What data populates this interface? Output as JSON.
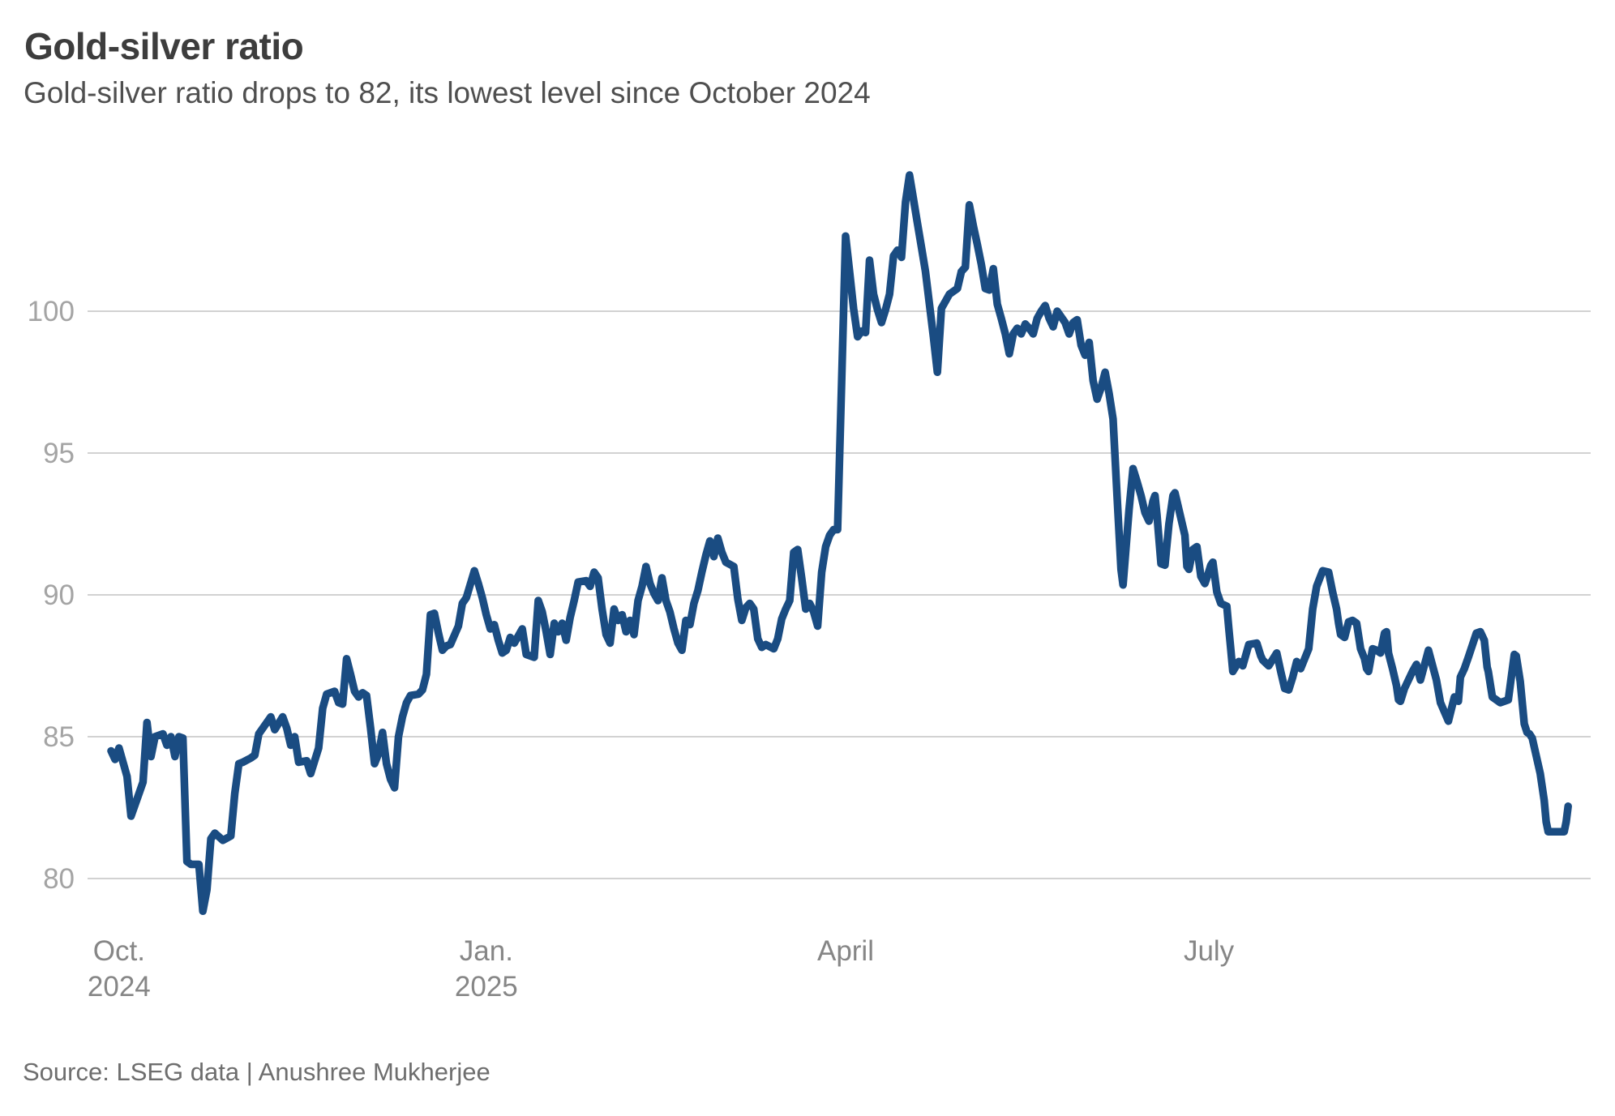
{
  "header": {
    "title": "Gold-silver ratio",
    "subtitle": "Gold-silver ratio drops to 82, its lowest level since October 2024"
  },
  "footer": {
    "source": "Source: LSEG data | Anushree Mukherjee"
  },
  "chart_data": {
    "type": "line",
    "title": "Gold-silver ratio",
    "series_name": "Gold-silver ratio",
    "line_color": "#1a4c82",
    "grid": true,
    "legend": false,
    "y_axis": {
      "ticks": [
        80,
        85,
        90,
        95,
        100
      ],
      "visible_min": 78.8,
      "visible_max": 104.8
    },
    "x_axis": {
      "unit": "days, daily series from late Sep 2024 to late Sep 2025",
      "t_end": 371,
      "ticks": [
        {
          "t": 2,
          "label": [
            "Oct.",
            "2024"
          ]
        },
        {
          "t": 94,
          "label": [
            "Jan.",
            "2025"
          ]
        },
        {
          "t": 184,
          "label": [
            "April"
          ]
        },
        {
          "t": 275,
          "label": [
            "July"
          ]
        }
      ]
    },
    "key_values": {
      "start": 84.5,
      "oct_2024_low": 78.9,
      "april_2025_peak": 104.8,
      "final_low": 81.7,
      "last": 82.5
    },
    "points": [
      [
        0,
        84.5
      ],
      [
        1,
        84.2
      ],
      [
        2,
        84.6
      ],
      [
        4,
        83.6
      ],
      [
        5,
        82.2
      ],
      [
        7,
        83
      ],
      [
        8,
        83.4
      ],
      [
        9,
        85.5
      ],
      [
        10,
        84.3
      ],
      [
        11,
        85
      ],
      [
        13,
        85.1
      ],
      [
        14,
        84.7
      ],
      [
        15,
        85
      ],
      [
        16,
        84.3
      ],
      [
        17,
        85
      ],
      [
        18,
        84.95
      ],
      [
        19,
        80.6
      ],
      [
        20,
        80.5
      ],
      [
        22,
        80.5
      ],
      [
        23,
        78.85
      ],
      [
        24,
        79.6
      ],
      [
        25,
        81.4
      ],
      [
        26,
        81.6
      ],
      [
        28,
        81.35
      ],
      [
        30,
        81.5
      ],
      [
        31,
        83
      ],
      [
        32,
        84.05
      ],
      [
        33,
        84.1
      ],
      [
        35,
        84.25
      ],
      [
        36,
        84.35
      ],
      [
        37,
        85.1
      ],
      [
        40,
        85.7
      ],
      [
        41,
        85.25
      ],
      [
        43,
        85.7
      ],
      [
        44,
        85.3
      ],
      [
        45,
        84.7
      ],
      [
        46,
        85
      ],
      [
        47,
        84.1
      ],
      [
        49,
        84.15
      ],
      [
        50,
        83.7
      ],
      [
        52,
        84.6
      ],
      [
        53,
        86
      ],
      [
        54,
        86.5
      ],
      [
        56,
        86.6
      ],
      [
        57,
        86.2
      ],
      [
        58,
        86.15
      ],
      [
        59,
        87.75
      ],
      [
        60,
        87.2
      ],
      [
        61,
        86.6
      ],
      [
        62,
        86.4
      ],
      [
        63,
        86.55
      ],
      [
        64,
        86.45
      ],
      [
        65,
        85.3
      ],
      [
        66,
        84.05
      ],
      [
        67,
        84.4
      ],
      [
        68,
        85.15
      ],
      [
        69,
        84.05
      ],
      [
        70,
        83.5
      ],
      [
        71,
        83.2
      ],
      [
        72,
        85
      ],
      [
        73,
        85.7
      ],
      [
        74,
        86.2
      ],
      [
        75,
        86.45
      ],
      [
        77,
        86.5
      ],
      [
        78,
        86.65
      ],
      [
        79,
        87.2
      ],
      [
        80,
        89.3
      ],
      [
        81,
        89.35
      ],
      [
        82,
        88.65
      ],
      [
        83,
        88.05
      ],
      [
        84,
        88.2
      ],
      [
        85,
        88.25
      ],
      [
        87,
        88.9
      ],
      [
        88,
        89.7
      ],
      [
        89,
        89.9
      ],
      [
        91,
        90.85
      ],
      [
        92,
        90.4
      ],
      [
        93,
        89.9
      ],
      [
        94,
        89.3
      ],
      [
        95,
        88.8
      ],
      [
        96,
        88.95
      ],
      [
        97,
        88.4
      ],
      [
        98,
        87.95
      ],
      [
        99,
        88.05
      ],
      [
        100,
        88.5
      ],
      [
        101,
        88.3
      ],
      [
        103,
        88.8
      ],
      [
        104,
        87.9
      ],
      [
        106,
        87.8
      ],
      [
        107,
        89.8
      ],
      [
        108,
        89.4
      ],
      [
        109,
        88.7
      ],
      [
        110,
        87.9
      ],
      [
        111,
        89
      ],
      [
        112,
        88.7
      ],
      [
        113,
        89
      ],
      [
        114,
        88.4
      ],
      [
        115,
        89.2
      ],
      [
        116,
        89.8
      ],
      [
        117,
        90.45
      ],
      [
        119,
        90.5
      ],
      [
        120,
        90.3
      ],
      [
        121,
        90.8
      ],
      [
        122,
        90.6
      ],
      [
        123,
        89.5
      ],
      [
        124,
        88.6
      ],
      [
        125,
        88.3
      ],
      [
        126,
        89.5
      ],
      [
        127,
        89.1
      ],
      [
        128,
        89.3
      ],
      [
        129,
        88.7
      ],
      [
        130,
        89.1
      ],
      [
        131,
        88.6
      ],
      [
        132,
        89.8
      ],
      [
        133,
        90.3
      ],
      [
        134,
        91
      ],
      [
        135,
        90.4
      ],
      [
        136,
        90.05
      ],
      [
        137,
        89.8
      ],
      [
        138,
        90.6
      ],
      [
        139,
        89.8
      ],
      [
        140,
        89.4
      ],
      [
        141,
        88.8
      ],
      [
        142,
        88.3
      ],
      [
        143,
        88.05
      ],
      [
        144,
        89.1
      ],
      [
        145,
        88.95
      ],
      [
        146,
        89.7
      ],
      [
        147,
        90.15
      ],
      [
        148,
        90.8
      ],
      [
        149,
        91.4
      ],
      [
        150,
        91.9
      ],
      [
        151,
        91.35
      ],
      [
        152,
        92
      ],
      [
        153,
        91.5
      ],
      [
        154,
        91.15
      ],
      [
        156,
        91
      ],
      [
        157,
        89.85
      ],
      [
        158,
        89.1
      ],
      [
        159,
        89.55
      ],
      [
        160,
        89.7
      ],
      [
        161,
        89.5
      ],
      [
        162,
        88.45
      ],
      [
        163,
        88.15
      ],
      [
        164,
        88.25
      ],
      [
        166,
        88.1
      ],
      [
        167,
        88.45
      ],
      [
        168,
        89.15
      ],
      [
        169,
        89.5
      ],
      [
        170,
        89.8
      ],
      [
        171,
        91.5
      ],
      [
        172,
        91.6
      ],
      [
        173,
        90.6
      ],
      [
        174,
        89.5
      ],
      [
        175,
        89.7
      ],
      [
        176,
        89.4
      ],
      [
        177,
        88.9
      ],
      [
        178,
        90.8
      ],
      [
        179,
        91.7
      ],
      [
        180,
        92.1
      ],
      [
        181,
        92.3
      ],
      [
        182,
        92.3
      ],
      [
        183,
        97.5
      ],
      [
        184,
        102.65
      ],
      [
        185,
        101.4
      ],
      [
        186,
        100.1
      ],
      [
        187,
        99.1
      ],
      [
        188,
        99.3
      ],
      [
        189,
        99.25
      ],
      [
        190,
        101.8
      ],
      [
        191,
        100.6
      ],
      [
        192,
        100.05
      ],
      [
        193,
        99.6
      ],
      [
        194,
        100.05
      ],
      [
        195,
        100.6
      ],
      [
        196,
        101.95
      ],
      [
        197,
        102.15
      ],
      [
        198,
        101.9
      ],
      [
        199,
        103.85
      ],
      [
        200,
        104.8
      ],
      [
        201,
        103.95
      ],
      [
        202,
        103.1
      ],
      [
        203,
        102.25
      ],
      [
        204,
        101.4
      ],
      [
        205,
        100.25
      ],
      [
        206,
        99.1
      ],
      [
        207,
        97.85
      ],
      [
        208,
        100.1
      ],
      [
        209,
        100.35
      ],
      [
        210,
        100.6
      ],
      [
        211,
        100.7
      ],
      [
        212,
        100.8
      ],
      [
        213,
        101.4
      ],
      [
        214,
        101.55
      ],
      [
        215,
        103.75
      ],
      [
        216,
        103
      ],
      [
        217,
        102.35
      ],
      [
        218,
        101.65
      ],
      [
        219,
        100.8
      ],
      [
        220,
        100.75
      ],
      [
        221,
        101.5
      ],
      [
        222,
        100.25
      ],
      [
        223,
        99.75
      ],
      [
        224,
        99.2
      ],
      [
        225,
        98.5
      ],
      [
        226,
        99.2
      ],
      [
        227,
        99.4
      ],
      [
        228,
        99.2
      ],
      [
        229,
        99.55
      ],
      [
        230,
        99.4
      ],
      [
        231,
        99.2
      ],
      [
        232,
        99.75
      ],
      [
        233,
        100
      ],
      [
        234,
        100.2
      ],
      [
        235,
        99.75
      ],
      [
        236,
        99.45
      ],
      [
        237,
        100
      ],
      [
        238,
        99.8
      ],
      [
        239,
        99.6
      ],
      [
        240,
        99.2
      ],
      [
        241,
        99.6
      ],
      [
        242,
        99.7
      ],
      [
        243,
        98.8
      ],
      [
        244,
        98.45
      ],
      [
        245,
        98.9
      ],
      [
        246,
        97.55
      ],
      [
        247,
        96.9
      ],
      [
        248,
        97.3
      ],
      [
        249,
        97.85
      ],
      [
        250,
        97.1
      ],
      [
        251,
        96.2
      ],
      [
        252,
        93.5
      ],
      [
        253,
        90.9
      ],
      [
        253.5,
        90.35
      ],
      [
        255,
        93
      ],
      [
        256,
        94.45
      ],
      [
        257,
        94
      ],
      [
        258,
        93.5
      ],
      [
        259,
        92.9
      ],
      [
        260,
        92.6
      ],
      [
        261,
        93.3
      ],
      [
        261.5,
        93.5
      ],
      [
        262,
        92.8
      ],
      [
        263,
        91.1
      ],
      [
        264,
        91.05
      ],
      [
        265,
        92.5
      ],
      [
        266,
        93.5
      ],
      [
        266.5,
        93.6
      ],
      [
        267,
        93.3
      ],
      [
        269,
        92.1
      ],
      [
        269.5,
        91
      ],
      [
        270,
        90.9
      ],
      [
        271,
        91.6
      ],
      [
        272,
        91.7
      ],
      [
        273,
        90.65
      ],
      [
        274,
        90.4
      ],
      [
        274.5,
        90.6
      ],
      [
        275.5,
        91.05
      ],
      [
        276,
        91.15
      ],
      [
        277,
        90.1
      ],
      [
        278,
        89.7
      ],
      [
        279.5,
        89.6
      ],
      [
        280,
        88.8
      ],
      [
        280.5,
        88.05
      ],
      [
        281,
        87.3
      ],
      [
        282.5,
        87.65
      ],
      [
        283.5,
        87.5
      ],
      [
        285,
        88.25
      ],
      [
        287,
        88.3
      ],
      [
        288,
        87.85
      ],
      [
        288.5,
        87.7
      ],
      [
        290,
        87.5
      ],
      [
        292,
        87.95
      ],
      [
        293,
        87.3
      ],
      [
        294,
        86.7
      ],
      [
        295,
        86.65
      ],
      [
        296,
        87.1
      ],
      [
        297,
        87.65
      ],
      [
        298,
        87.4
      ],
      [
        300,
        88.1
      ],
      [
        301,
        89.5
      ],
      [
        302,
        90.3
      ],
      [
        303.5,
        90.85
      ],
      [
        305,
        90.8
      ],
      [
        306,
        90.1
      ],
      [
        307,
        89.5
      ],
      [
        307.5,
        89
      ],
      [
        308,
        88.6
      ],
      [
        309,
        88.5
      ],
      [
        310,
        89.05
      ],
      [
        311,
        89.1
      ],
      [
        312,
        89
      ],
      [
        313,
        88.1
      ],
      [
        314,
        87.75
      ],
      [
        314.5,
        87.4
      ],
      [
        315,
        87.3
      ],
      [
        316,
        88.1
      ],
      [
        317,
        88.05
      ],
      [
        318,
        87.95
      ],
      [
        319,
        88.65
      ],
      [
        319.5,
        88.7
      ],
      [
        320,
        87.95
      ],
      [
        321,
        87.4
      ],
      [
        322,
        86.8
      ],
      [
        322.5,
        86.3
      ],
      [
        323,
        86.25
      ],
      [
        324,
        86.7
      ],
      [
        326,
        87.3
      ],
      [
        327,
        87.55
      ],
      [
        328,
        87
      ],
      [
        330,
        88.05
      ],
      [
        332,
        87
      ],
      [
        333,
        86.2
      ],
      [
        335,
        85.55
      ],
      [
        336.5,
        86.4
      ],
      [
        337.5,
        86.25
      ],
      [
        338,
        87.1
      ],
      [
        339,
        87.4
      ],
      [
        340,
        87.8
      ],
      [
        342,
        88.65
      ],
      [
        343,
        88.7
      ],
      [
        344,
        88.4
      ],
      [
        344.7,
        87.45
      ],
      [
        345,
        87.3
      ],
      [
        346,
        86.4
      ],
      [
        348,
        86.2
      ],
      [
        350,
        86.3
      ],
      [
        351.5,
        87.9
      ],
      [
        352,
        87.85
      ],
      [
        353,
        86.95
      ],
      [
        354,
        85.45
      ],
      [
        354.7,
        85.15
      ],
      [
        355.3,
        85.1
      ],
      [
        356,
        84.95
      ],
      [
        358,
        83.7
      ],
      [
        359,
        82.75
      ],
      [
        359.5,
        82
      ],
      [
        360,
        81.65
      ],
      [
        364,
        81.65
      ],
      [
        364.5,
        82
      ],
      [
        365,
        82.55
      ]
    ]
  }
}
